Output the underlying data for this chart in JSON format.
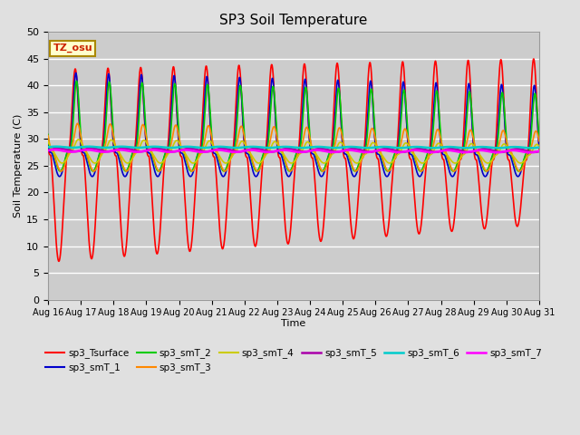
{
  "title": "SP3 Soil Temperature",
  "ylabel": "Soil Temperature (C)",
  "xlabel": "Time",
  "tz_label": "TZ_osu",
  "ylim": [
    0,
    50
  ],
  "yticks": [
    0,
    5,
    10,
    15,
    20,
    25,
    30,
    35,
    40,
    45,
    50
  ],
  "background_color": "#e0e0e0",
  "plot_bg_color": "#d0d0d0",
  "grid_color": "#c0c0c0",
  "series_colors": {
    "sp3_Tsurface": "#ff0000",
    "sp3_smT_1": "#0000cc",
    "sp3_smT_2": "#00cc00",
    "sp3_smT_3": "#ff8800",
    "sp3_smT_4": "#cccc00",
    "sp3_smT_5": "#aa00aa",
    "sp3_smT_6": "#00cccc",
    "sp3_smT_7": "#ff00ff"
  },
  "n_days": 15,
  "points_per_day": 144,
  "start_day": 16,
  "figsize": [
    6.4,
    4.8
  ],
  "dpi": 100
}
